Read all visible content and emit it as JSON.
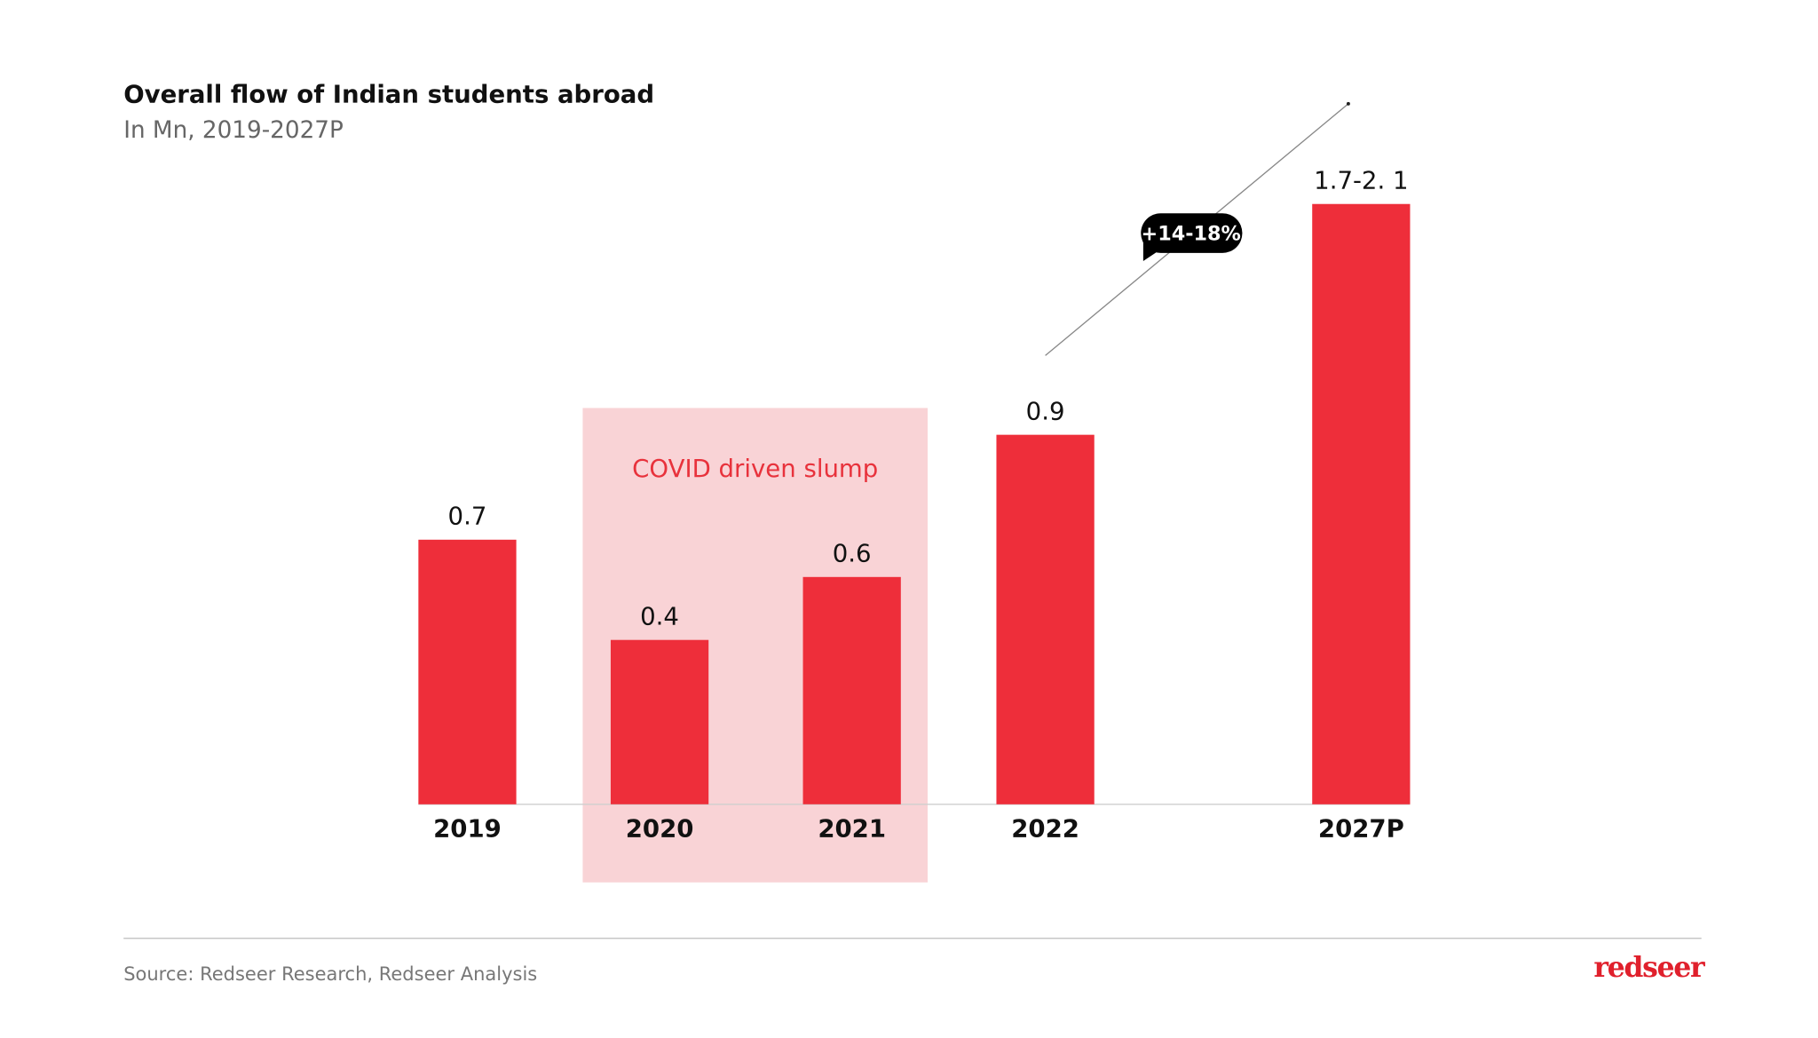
{
  "chart_data": {
    "type": "bar",
    "title": "Overall flow of Indian students abroad",
    "subtitle": "In Mn, 2019-2027P",
    "categories": [
      "2019",
      "2020",
      "2021",
      "2022",
      "2027P"
    ],
    "values": [
      0.7,
      0.4,
      0.6,
      0.9,
      [
        1.7,
        2.1
      ]
    ],
    "data_labels": [
      "0.7",
      "0.4",
      "0.6",
      "0.9",
      "1.7-2. 1"
    ],
    "bar_color": "#ee2e3a",
    "highlight": {
      "label": "COVID driven slump",
      "categories": [
        "2020",
        "2021"
      ],
      "color": "#f9d3d6",
      "text_color": "#e8323c"
    },
    "growth_annotation": {
      "label": "+14-18%",
      "from": "2022",
      "to": "2027P"
    },
    "grid": false,
    "legend": "none"
  },
  "footer": {
    "source": "Source: Redseer Research, Redseer Analysis",
    "logo": "redseer",
    "logo_color": "#e0202c"
  }
}
